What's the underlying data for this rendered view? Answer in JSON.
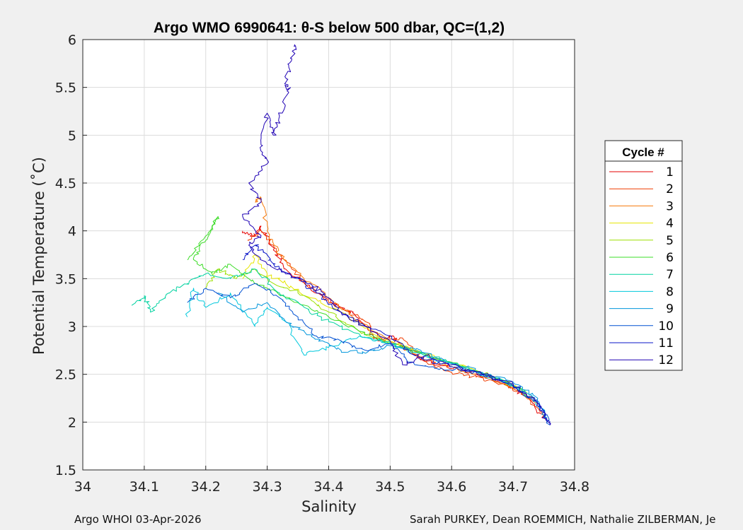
{
  "chart_data": {
    "type": "line",
    "title": "Argo WMO 6990641: θ-S below 500 dbar,  QC=(1,2)",
    "xlabel": "Salinity",
    "ylabel": "Potential Temperature (˚C)",
    "xlim": [
      34,
      34.8
    ],
    "ylim": [
      1.5,
      6
    ],
    "xticks": [
      34,
      34.1,
      34.2,
      34.3,
      34.4,
      34.5,
      34.6,
      34.7,
      34.8
    ],
    "yticks": [
      1.5,
      2,
      2.5,
      3,
      3.5,
      4,
      4.5,
      5,
      5.5,
      6
    ],
    "xtick_labels": [
      "34",
      "34.1",
      "34.2",
      "34.3",
      "34.4",
      "34.5",
      "34.6",
      "34.7",
      "34.8"
    ],
    "ytick_labels": [
      "1.5",
      "2",
      "2.5",
      "3",
      "3.5",
      "4",
      "4.5",
      "5",
      "5.5",
      "6"
    ],
    "grid": true,
    "legend": {
      "title": "Cycle #",
      "placement": "right-outside"
    },
    "series": [
      {
        "name": "1",
        "color": "#e60000",
        "x": [
          34.26,
          34.28,
          34.29,
          34.31,
          34.33,
          34.37,
          34.42,
          34.44,
          34.46,
          34.48,
          34.5,
          34.52,
          34.55,
          34.58,
          34.61,
          34.64,
          34.67,
          34.7,
          34.73,
          34.755
        ],
        "y": [
          4.0,
          3.95,
          4.05,
          3.8,
          3.6,
          3.4,
          3.2,
          3.15,
          3.0,
          2.85,
          2.9,
          2.8,
          2.65,
          2.6,
          2.55,
          2.5,
          2.45,
          2.35,
          2.22,
          2.0
        ]
      },
      {
        "name": "2",
        "color": "#f03c00",
        "x": [
          34.27,
          34.29,
          34.31,
          34.34,
          34.38,
          34.42,
          34.46,
          34.49,
          34.52,
          34.56,
          34.6,
          34.64,
          34.68,
          34.72,
          34.75
        ],
        "y": [
          3.9,
          4.0,
          3.85,
          3.6,
          3.35,
          3.2,
          3.05,
          2.85,
          2.88,
          2.62,
          2.52,
          2.47,
          2.4,
          2.28,
          2.05
        ]
      },
      {
        "name": "3",
        "color": "#f5780a",
        "x": [
          34.28,
          34.29,
          34.3,
          34.32,
          34.36,
          34.4,
          34.45,
          34.5,
          34.55,
          34.6,
          34.65,
          34.7,
          34.74
        ],
        "y": [
          4.3,
          4.35,
          4.0,
          3.75,
          3.5,
          3.3,
          3.05,
          2.85,
          2.68,
          2.58,
          2.48,
          2.36,
          2.18
        ]
      },
      {
        "name": "4",
        "color": "#e6e600",
        "x": [
          34.26,
          34.28,
          34.3,
          34.33,
          34.37,
          34.42,
          34.48,
          34.54,
          34.6,
          34.66,
          34.71,
          34.735
        ],
        "y": [
          3.5,
          3.75,
          3.55,
          3.45,
          3.3,
          3.15,
          2.9,
          2.75,
          2.62,
          2.5,
          2.35,
          2.22
        ]
      },
      {
        "name": "5",
        "color": "#9be000",
        "x": [
          34.2,
          34.22,
          34.25,
          34.28,
          34.31,
          34.35,
          34.4,
          34.45,
          34.5,
          34.56,
          34.62,
          34.68,
          34.72
        ],
        "y": [
          3.4,
          3.6,
          3.5,
          3.6,
          3.45,
          3.35,
          3.15,
          2.95,
          2.82,
          2.7,
          2.58,
          2.45,
          2.3
        ]
      },
      {
        "name": "6",
        "color": "#3cdc28",
        "x": [
          34.17,
          34.19,
          34.21,
          34.22,
          34.2,
          34.18,
          34.21,
          34.24,
          34.27,
          34.3,
          34.35,
          34.4,
          34.45,
          34.5,
          34.56,
          34.62,
          34.68,
          34.72
        ],
        "y": [
          3.7,
          3.85,
          4.05,
          4.15,
          3.9,
          3.7,
          3.55,
          3.65,
          3.5,
          3.4,
          3.25,
          3.1,
          2.95,
          2.82,
          2.7,
          2.58,
          2.45,
          2.32
        ]
      },
      {
        "name": "7",
        "color": "#00d2a0",
        "x": [
          34.08,
          34.1,
          34.11,
          34.14,
          34.17,
          34.2,
          34.24,
          34.28,
          34.32,
          34.36,
          34.4,
          34.45,
          34.5,
          34.56,
          34.62,
          34.68,
          34.73
        ],
        "y": [
          3.22,
          3.32,
          3.15,
          3.35,
          3.45,
          3.55,
          3.5,
          3.6,
          3.35,
          3.2,
          3.05,
          2.92,
          2.82,
          2.7,
          2.58,
          2.45,
          2.25
        ]
      },
      {
        "name": "8",
        "color": "#00c8dc",
        "x": [
          34.17,
          34.18,
          34.2,
          34.24,
          34.28,
          34.3,
          34.33,
          34.36,
          34.4,
          34.45,
          34.5,
          34.56,
          34.62,
          34.68,
          34.73,
          34.755
        ],
        "y": [
          3.1,
          3.4,
          3.2,
          3.35,
          3.0,
          3.2,
          3.05,
          2.7,
          2.78,
          2.9,
          2.82,
          2.68,
          2.57,
          2.44,
          2.28,
          2.05
        ]
      },
      {
        "name": "9",
        "color": "#0096dc",
        "x": [
          34.22,
          34.26,
          34.3,
          34.33,
          34.36,
          34.39,
          34.42,
          34.46,
          34.5,
          34.55,
          34.6,
          34.65,
          34.7,
          34.74,
          34.755
        ],
        "y": [
          3.35,
          3.15,
          3.25,
          3.05,
          2.95,
          2.85,
          2.75,
          2.72,
          2.8,
          2.75,
          2.62,
          2.52,
          2.42,
          2.25,
          2.0
        ]
      },
      {
        "name": "10",
        "color": "#0050d2",
        "x": [
          34.17,
          34.2,
          34.24,
          34.28,
          34.32,
          34.35,
          34.38,
          34.42,
          34.46,
          34.5,
          34.54,
          34.58,
          34.62,
          34.66,
          34.7,
          34.74,
          34.76
        ],
        "y": [
          3.25,
          3.4,
          3.3,
          3.45,
          3.3,
          3.1,
          2.9,
          2.85,
          2.75,
          2.82,
          2.6,
          2.55,
          2.55,
          2.48,
          2.38,
          2.2,
          1.97
        ]
      },
      {
        "name": "11",
        "color": "#0a14c8",
        "x": [
          34.26,
          34.28,
          34.3,
          34.32,
          34.35,
          34.38,
          34.42,
          34.46,
          34.5,
          34.53,
          34.56,
          34.6,
          34.65,
          34.7,
          34.74,
          34.76
        ],
        "y": [
          3.7,
          3.85,
          3.75,
          3.6,
          3.5,
          3.35,
          3.15,
          3.0,
          2.9,
          2.75,
          2.65,
          2.58,
          2.5,
          2.4,
          2.2,
          1.97
        ]
      },
      {
        "name": "12",
        "color": "#1e00b4",
        "x": [
          34.345,
          34.34,
          34.33,
          34.335,
          34.32,
          34.31,
          34.3,
          34.29,
          34.3,
          34.27,
          34.29,
          34.26,
          34.29,
          34.27,
          34.3,
          34.33,
          34.37,
          34.4,
          34.42,
          34.46,
          34.5,
          34.52,
          34.56,
          34.6,
          34.65,
          34.7,
          34.74,
          34.76
        ],
        "y": [
          5.95,
          5.8,
          5.6,
          5.45,
          5.2,
          5.0,
          5.23,
          4.9,
          4.7,
          4.5,
          4.3,
          4.15,
          3.95,
          3.85,
          3.65,
          3.55,
          3.45,
          3.3,
          3.15,
          3.0,
          2.85,
          2.6,
          2.7,
          2.6,
          2.5,
          2.4,
          2.2,
          1.97
        ]
      }
    ]
  },
  "footer": {
    "left": "Argo WHOI 03-Apr-2026",
    "right": "Sarah PURKEY, Dean ROEMMICH, Nathalie ZILBERMAN, Je"
  }
}
